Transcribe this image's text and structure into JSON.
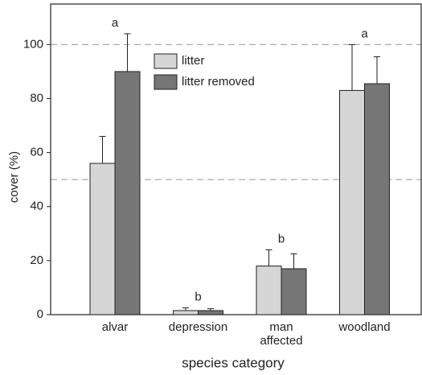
{
  "chart_data": {
    "type": "bar",
    "x_label": "species category",
    "y_label": "cover (%)",
    "categories": [
      "alvar",
      "depression",
      "man\naffected",
      "woodland"
    ],
    "series": [
      {
        "name": "litter",
        "color": "#d6d6d6",
        "values": [
          56,
          1.5,
          18,
          83
        ],
        "errors": [
          10,
          1,
          6,
          17
        ]
      },
      {
        "name": "litter removed",
        "color": "#767676",
        "values": [
          90,
          1.5,
          17,
          85.5
        ],
        "errors": [
          14,
          0.7,
          5.5,
          10
        ]
      }
    ],
    "annotations": [
      "a",
      "b",
      "b",
      "a"
    ],
    "reference_lines": [
      50,
      100
    ],
    "ylim": [
      0,
      115
    ],
    "yticks": [
      0,
      20,
      40,
      60,
      80,
      100
    ]
  }
}
